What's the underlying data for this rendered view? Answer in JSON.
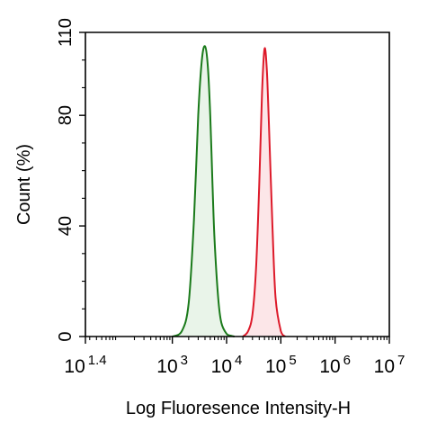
{
  "chart_data": {
    "type": "area",
    "xlabel": "Log Fluoresence Intensity-H",
    "ylabel": "Count  (%)",
    "x_scale": "log",
    "xlim": [
      25,
      10000000
    ],
    "ylim": [
      0,
      110
    ],
    "xticks": [
      {
        "base": "10",
        "exp": "1.4",
        "value": 25
      },
      {
        "base": "10",
        "exp": "3",
        "value": 1000
      },
      {
        "base": "10",
        "exp": "4",
        "value": 10000
      },
      {
        "base": "10",
        "exp": "5",
        "value": 100000
      },
      {
        "base": "10",
        "exp": "6",
        "value": 1000000
      },
      {
        "base": "10",
        "exp": "7",
        "value": 10000000
      }
    ],
    "yticks": [
      {
        "label": "0",
        "value": 0
      },
      {
        "label": "40",
        "value": 40
      },
      {
        "label": "80",
        "value": 80
      },
      {
        "label": "110",
        "value": 110
      }
    ],
    "grid": false,
    "legend": "none",
    "series": [
      {
        "color": "#1a7a1a",
        "fill": "#e9f4e9",
        "x": [
          1000,
          1500,
          2000,
          2500,
          3000,
          3500,
          4000,
          4500,
          5000,
          5500,
          6000,
          7000,
          8000,
          10000,
          12000,
          14000
        ],
        "y": [
          0,
          2,
          12,
          42,
          80,
          100,
          105,
          98,
          80,
          55,
          35,
          14,
          5,
          1,
          0.3,
          0
        ]
      },
      {
        "color": "#dd1a2a",
        "fill": "#fce6e8",
        "x": [
          20000,
          25000,
          30000,
          35000,
          40000,
          45000,
          50000,
          55000,
          60000,
          70000,
          80000,
          100000,
          120000
        ],
        "y": [
          0,
          2,
          8,
          25,
          55,
          88,
          104,
          97,
          78,
          40,
          14,
          2,
          0
        ]
      }
    ]
  }
}
